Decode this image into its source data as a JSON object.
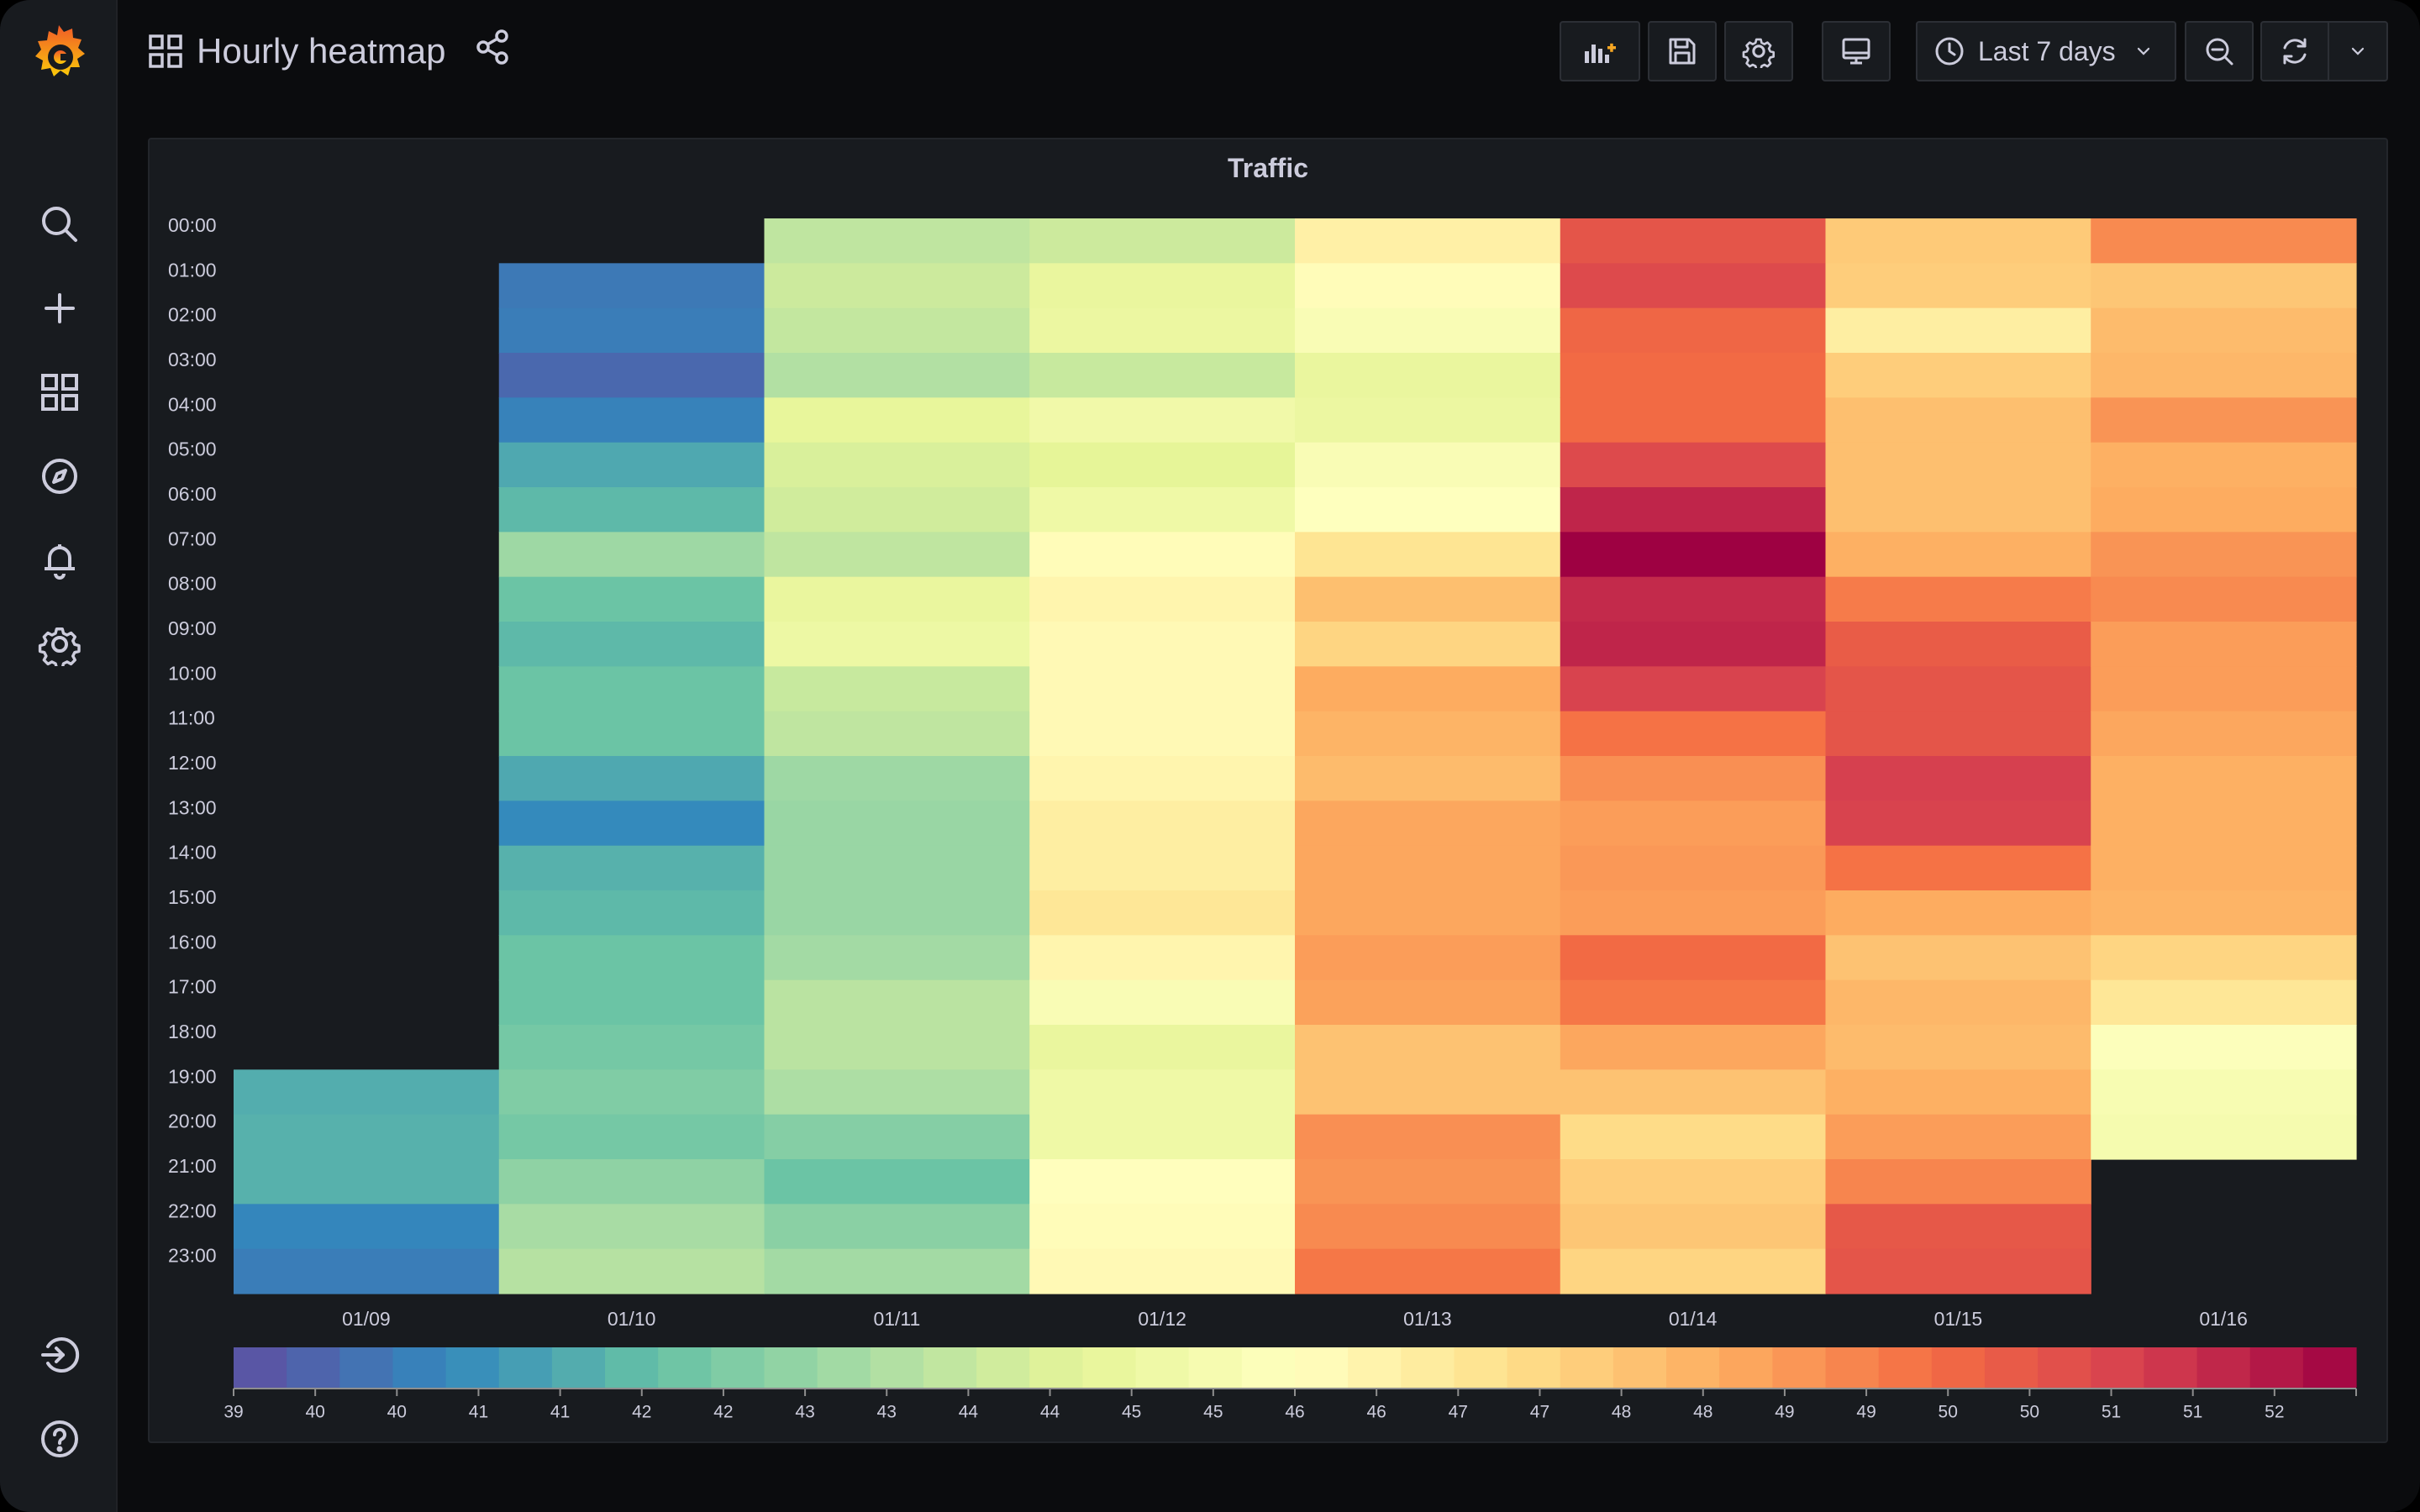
{
  "header": {
    "title": "Hourly heatmap",
    "time_range": "Last 7 days",
    "icons": {
      "dashboard": "dashboard-grid-icon",
      "share": "share-icon",
      "add_panel": "add-panel-icon",
      "save": "save-icon",
      "settings": "settings-gear-icon",
      "cycle_view": "monitor-icon",
      "time_picker": "clock-icon",
      "zoom_out": "zoom-out-icon",
      "refresh": "refresh-icon",
      "refresh_interval": "chevron-down-icon"
    }
  },
  "sidebar": {
    "items": [
      {
        "name": "search",
        "icon": "search-icon"
      },
      {
        "name": "create",
        "icon": "plus-icon"
      },
      {
        "name": "dashboards",
        "icon": "dashboards-grid-icon"
      },
      {
        "name": "explore",
        "icon": "compass-icon"
      },
      {
        "name": "alerting",
        "icon": "bell-icon"
      },
      {
        "name": "configuration",
        "icon": "gear-icon"
      },
      {
        "name": "sign-in",
        "icon": "sign-in-icon"
      },
      {
        "name": "help",
        "icon": "help-icon"
      }
    ]
  },
  "colors": {
    "scale": [
      "#5e4fa2",
      "#3288bd",
      "#66c2a5",
      "#abdda4",
      "#e6f598",
      "#ffffbf",
      "#fee08b",
      "#fdae61",
      "#f46d43",
      "#d53e4f",
      "#9e0142"
    ],
    "empty": "#181b1f",
    "text": "#ccccdc",
    "accent": "#f6a623"
  },
  "panel": {
    "title": "Traffic"
  },
  "chart_data": {
    "type": "heatmap",
    "title": "Traffic",
    "x_categories": [
      "01/09",
      "01/10",
      "01/11",
      "01/12",
      "01/13",
      "01/14",
      "01/15",
      "01/16"
    ],
    "y_categories": [
      "00:00",
      "01:00",
      "02:00",
      "03:00",
      "04:00",
      "05:00",
      "06:00",
      "07:00",
      "08:00",
      "09:00",
      "10:00",
      "11:00",
      "12:00",
      "13:00",
      "14:00",
      "15:00",
      "16:00",
      "17:00",
      "18:00",
      "19:00",
      "20:00",
      "21:00",
      "22:00",
      "23:00"
    ],
    "values": [
      [
        null,
        null,
        null,
        null,
        null,
        null,
        null,
        null,
        null,
        null,
        null,
        null,
        null,
        null,
        null,
        null,
        null,
        null,
        null,
        41.2,
        41.3,
        41.3,
        40.3,
        40.1
      ],
      [
        null,
        40.0,
        40.1,
        39.6,
        40.2,
        41.1,
        41.5,
        42.8,
        41.8,
        41.5,
        41.8,
        41.8,
        41.1,
        40.4,
        41.3,
        41.5,
        41.8,
        41.8,
        42.0,
        42.2,
        42.0,
        42.5,
        43.0,
        43.3
      ],
      [
        43.5,
        43.8,
        43.6,
        43.2,
        44.5,
        44.1,
        43.9,
        43.5,
        44.6,
        44.8,
        43.7,
        43.5,
        42.8,
        42.7,
        42.7,
        42.7,
        42.9,
        43.4,
        43.4,
        43.1,
        42.3,
        41.8,
        42.4,
        42.9
      ],
      [
        43.8,
        44.6,
        44.7,
        43.7,
        45.0,
        44.4,
        44.9,
        45.9,
        46.2,
        46.0,
        46.0,
        46.0,
        46.2,
        46.5,
        46.5,
        46.8,
        46.2,
        45.4,
        44.6,
        44.9,
        44.9,
        45.8,
        45.9,
        46.0
      ],
      [
        46.4,
        45.9,
        45.4,
        44.6,
        44.7,
        45.4,
        45.7,
        46.9,
        48.0,
        47.4,
        48.5,
        48.3,
        48.1,
        48.6,
        48.6,
        48.6,
        48.8,
        48.7,
        47.9,
        47.9,
        49.1,
        49.0,
        49.2,
        49.6
      ],
      [
        50.5,
        50.8,
        50.0,
        49.9,
        49.9,
        50.8,
        51.7,
        52.6,
        51.6,
        51.7,
        51.0,
        49.7,
        49.1,
        48.8,
        48.9,
        48.8,
        49.9,
        49.6,
        48.6,
        47.9,
        47.2,
        47.6,
        47.8,
        47.4
      ],
      [
        47.7,
        47.6,
        46.5,
        47.6,
        48.0,
        48.0,
        48.0,
        48.4,
        49.5,
        50.3,
        50.5,
        50.5,
        51.1,
        51.0,
        49.7,
        48.5,
        47.9,
        48.2,
        48.1,
        48.4,
        48.8,
        49.3,
        50.4,
        50.5
      ],
      [
        49.2,
        47.8,
        48.1,
        48.2,
        49.0,
        48.4,
        48.5,
        49.0,
        49.2,
        48.8,
        48.8,
        48.6,
        48.4,
        48.4,
        48.4,
        48.3,
        47.4,
        46.8,
        45.6,
        45.3,
        45.2,
        null,
        null,
        null
      ]
    ],
    "color_scale": {
      "min": 39,
      "max": 52.5,
      "scheme": "Spectral (reversed)"
    },
    "legend_ticks": [
      "39",
      "40",
      "40",
      "41",
      "41",
      "42",
      "42",
      "43",
      "43",
      "44",
      "44",
      "45",
      "45",
      "46",
      "46",
      "47",
      "47",
      "48",
      "48",
      "49",
      "49",
      "50",
      "50",
      "51",
      "51",
      "52"
    ],
    "legend_placement": "bottom"
  }
}
